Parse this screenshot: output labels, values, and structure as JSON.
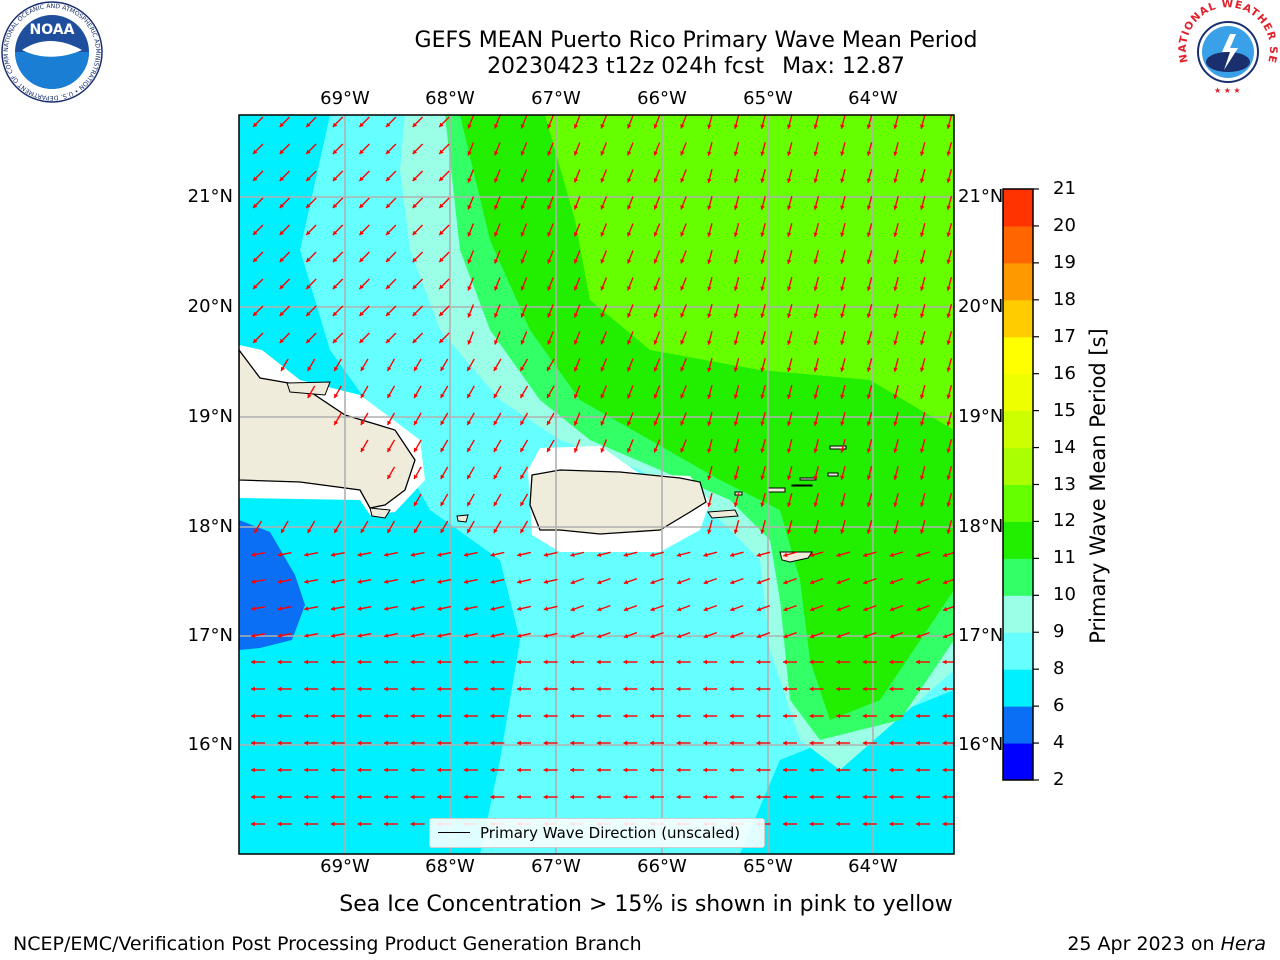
{
  "title_line1": "GEFS MEAN Puerto Rico Primary Wave Mean Period",
  "title_date": "20230423 t12z 024h fcst",
  "title_max": "Max: 12.87",
  "lon_ticks": [
    "69°W",
    "68°W",
    "67°W",
    "66°W",
    "65°W",
    "64°W"
  ],
  "lat_ticks": [
    "21°N",
    "20°N",
    "19°N",
    "18°N",
    "17°N",
    "16°N"
  ],
  "legend_label": "Primary Wave Direction (unscaled)",
  "colorbar": {
    "label": "Primary Wave Mean Period [s]",
    "ticks": [
      "2",
      "4",
      "6",
      "8",
      "9",
      "10",
      "11",
      "12",
      "13",
      "14",
      "15",
      "16",
      "17",
      "18",
      "19",
      "20",
      "21"
    ],
    "colors": [
      "#0000ff",
      "#0a6ff5",
      "#00f0ff",
      "#66ffff",
      "#9bffe8",
      "#33ff66",
      "#22ee00",
      "#66ff00",
      "#aaff00",
      "#ccff00",
      "#eeff00",
      "#ffff00",
      "#ffcc00",
      "#ff9900",
      "#ff6600",
      "#ff3300",
      "#ff0000"
    ]
  },
  "ice_note": "Sea Ice Concentration > 15% is shown in pink to yellow",
  "footer_left": "NCEP/EMC/Verification Post Processing Product Generation Branch",
  "footer_date": "25 Apr 2023 on ",
  "footer_machine": "Hera",
  "logos": {
    "noaa_text": "NOAA",
    "noaa_ring": "NATIONAL OCEANIC AND ATMOSPHERIC ADMINISTRATION • U.S. DEPARTMENT OF COMMERCE •",
    "nws_ring": "NATIONAL WEATHER SERVICE"
  },
  "colors": {
    "land": "#efecdc",
    "arrow": "#ff0000",
    "grid": "#b0b0b0"
  }
}
